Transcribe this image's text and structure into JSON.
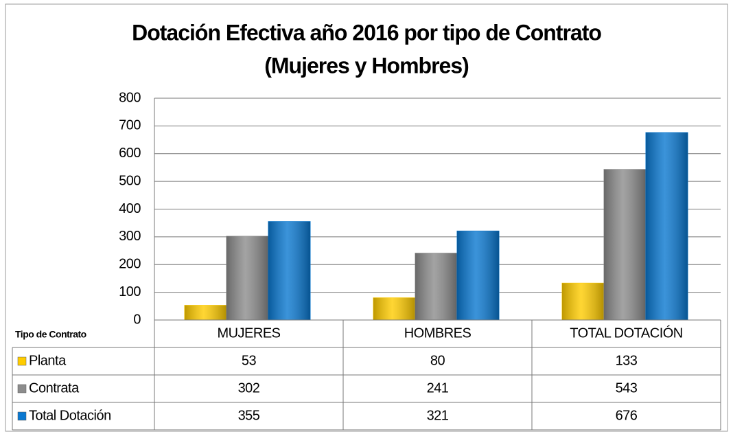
{
  "chart_data": {
    "type": "bar",
    "title": [
      "Dotación Efectiva año 2016  por tipo de Contrato",
      "(Mujeres y Hombres)"
    ],
    "table_header": "Tipo de Contrato",
    "categories": [
      "MUJERES",
      "HOMBRES",
      "TOTAL DOTACIÓN"
    ],
    "series": [
      {
        "name": "Planta",
        "color": "#ffcc00",
        "values": [
          53,
          80,
          133
        ]
      },
      {
        "name": "Contrata",
        "color": "#8c8c8c",
        "values": [
          302,
          241,
          543
        ]
      },
      {
        "name": "Total Dotación",
        "color": "#0a78d0",
        "values": [
          355,
          321,
          676
        ]
      }
    ],
    "ylim": [
      0,
      800
    ],
    "yticks": [
      0,
      100,
      200,
      300,
      400,
      500,
      600,
      700,
      800
    ],
    "grid": true
  }
}
